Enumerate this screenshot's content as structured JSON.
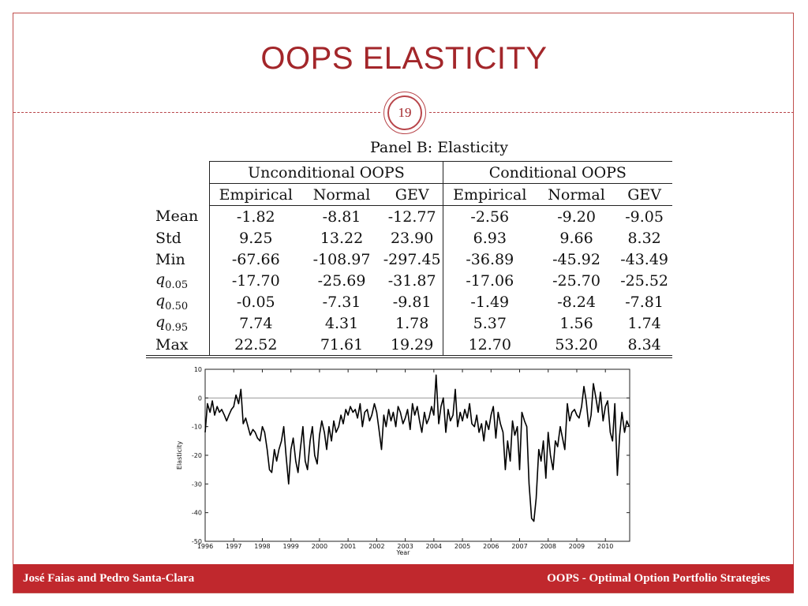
{
  "slide": {
    "title": "OOPS ELASTICITY",
    "page_number": "19"
  },
  "table": {
    "panel_title": "Panel B: Elasticity",
    "groups": [
      "Unconditional OOPS",
      "Conditional OOPS"
    ],
    "subheaders": [
      "Empirical",
      "Normal",
      "GEV",
      "Empirical",
      "Normal",
      "GEV"
    ],
    "rows": [
      {
        "label": "Mean",
        "values": [
          "-1.82",
          "-8.81",
          "-12.77",
          "-2.56",
          "-9.20",
          "-9.05"
        ]
      },
      {
        "label": "Std",
        "values": [
          "9.25",
          "13.22",
          "23.90",
          "6.93",
          "9.66",
          "8.32"
        ]
      },
      {
        "label": "Min",
        "values": [
          "-67.66",
          "-108.97",
          "-297.45",
          "-36.89",
          "-45.92",
          "-43.49"
        ]
      },
      {
        "label": "q",
        "sub": "0.05",
        "values": [
          "-17.70",
          "-25.69",
          "-31.87",
          "-17.06",
          "-25.70",
          "-25.52"
        ]
      },
      {
        "label": "q",
        "sub": "0.50",
        "values": [
          "-0.05",
          "-7.31",
          "-9.81",
          "-1.49",
          "-8.24",
          "-7.81"
        ]
      },
      {
        "label": "q",
        "sub": "0.95",
        "values": [
          "7.74",
          "4.31",
          "1.78",
          "5.37",
          "1.56",
          "1.74"
        ]
      },
      {
        "label": "Max",
        "values": [
          "22.52",
          "71.61",
          "19.29",
          "12.70",
          "53.20",
          "8.34"
        ]
      }
    ]
  },
  "chart_data": {
    "type": "line",
    "title": "",
    "xlabel": "Year",
    "ylabel": "Elasticity",
    "xlim": [
      1996,
      2010.85
    ],
    "ylim": [
      -50,
      10
    ],
    "xticks": [
      "1996",
      "1997",
      "1998",
      "1999",
      "2000",
      "2001",
      "2002",
      "2003",
      "2004",
      "2005",
      "2006",
      "2007",
      "2008",
      "2009",
      "2010"
    ],
    "yticks": [
      "10",
      "0",
      "-10",
      "-20",
      "-30",
      "-40",
      "-50"
    ],
    "grid": false,
    "reference_line": 0,
    "series": [
      {
        "x": [
          1996.0,
          1996.08,
          1996.17,
          1996.25,
          1996.33,
          1996.42,
          1996.5,
          1996.58,
          1996.67,
          1996.75,
          1996.83,
          1996.92,
          1997.0,
          1997.08,
          1997.17,
          1997.25,
          1997.33,
          1997.42,
          1997.5,
          1997.58,
          1997.67,
          1997.75,
          1997.83,
          1997.92,
          1998.0,
          1998.08,
          1998.17,
          1998.25,
          1998.33,
          1998.42,
          1998.5,
          1998.58,
          1998.67,
          1998.75,
          1998.83,
          1998.92,
          1999.0,
          1999.08,
          1999.17,
          1999.25,
          1999.33,
          1999.42,
          1999.5,
          1999.58,
          1999.67,
          1999.75,
          1999.83,
          1999.92,
          2000.0,
          2000.08,
          2000.17,
          2000.25,
          2000.33,
          2000.42,
          2000.5,
          2000.58,
          2000.67,
          2000.75,
          2000.83,
          2000.92,
          2001.0,
          2001.08,
          2001.17,
          2001.25,
          2001.33,
          2001.42,
          2001.5,
          2001.58,
          2001.67,
          2001.75,
          2001.83,
          2001.92,
          2002.0,
          2002.08,
          2002.17,
          2002.25,
          2002.33,
          2002.42,
          2002.5,
          2002.58,
          2002.67,
          2002.75,
          2002.83,
          2002.92,
          2003.0,
          2003.08,
          2003.17,
          2003.25,
          2003.33,
          2003.42,
          2003.5,
          2003.58,
          2003.67,
          2003.75,
          2003.83,
          2003.92,
          2004.0,
          2004.08,
          2004.17,
          2004.25,
          2004.33,
          2004.42,
          2004.5,
          2004.58,
          2004.67,
          2004.75,
          2004.83,
          2004.92,
          2005.0,
          2005.08,
          2005.17,
          2005.25,
          2005.33,
          2005.42,
          2005.5,
          2005.58,
          2005.67,
          2005.75,
          2005.83,
          2005.92,
          2006.0,
          2006.08,
          2006.17,
          2006.25,
          2006.33,
          2006.42,
          2006.5,
          2006.58,
          2006.67,
          2006.75,
          2006.83,
          2006.92,
          2007.0,
          2007.08,
          2007.17,
          2007.25,
          2007.33,
          2007.42,
          2007.5,
          2007.58,
          2007.67,
          2007.75,
          2007.83,
          2007.92,
          2008.0,
          2008.08,
          2008.17,
          2008.25,
          2008.33,
          2008.42,
          2008.5,
          2008.58,
          2008.67,
          2008.75,
          2008.83,
          2008.92,
          2009.0,
          2009.08,
          2009.17,
          2009.25,
          2009.33,
          2009.42,
          2009.5,
          2009.58,
          2009.67,
          2009.75,
          2009.83,
          2009.92,
          2010.0,
          2010.08,
          2010.17,
          2010.25,
          2010.33,
          2010.42,
          2010.5,
          2010.58,
          2010.67,
          2010.75,
          2010.83
        ],
        "y": [
          -12,
          -2,
          -5,
          -1,
          -6,
          -3,
          -5,
          -4,
          -6,
          -8,
          -6,
          -4,
          -3,
          1,
          -2,
          3,
          -9,
          -7,
          -10,
          -13,
          -11,
          -12,
          -14,
          -15,
          -10,
          -12,
          -18,
          -25,
          -26,
          -18,
          -22,
          -18,
          -15,
          -10,
          -20,
          -30,
          -18,
          -14,
          -22,
          -26,
          -18,
          -10,
          -22,
          -25,
          -15,
          -10,
          -20,
          -23,
          -13,
          -8,
          -12,
          -18,
          -10,
          -15,
          -8,
          -12,
          -10,
          -6,
          -9,
          -4,
          -6,
          -3,
          -5,
          -4,
          -7,
          -2,
          -10,
          -5,
          -4,
          -8,
          -6,
          -2,
          -5,
          -11,
          -18,
          -6,
          -10,
          -4,
          -8,
          -5,
          -10,
          -3,
          -5,
          -9,
          -7,
          -4,
          -11,
          -2,
          -6,
          -3,
          -8,
          -12,
          -5,
          -9,
          -7,
          -3,
          -6,
          8,
          -9,
          -3,
          0,
          -12,
          -4,
          -8,
          -6,
          3,
          -10,
          -5,
          -8,
          -4,
          -7,
          -2,
          -9,
          -10,
          -6,
          -12,
          -9,
          -15,
          -8,
          -11,
          -6,
          -3,
          -14,
          -5,
          -9,
          -12,
          -25,
          -15,
          -22,
          -8,
          -13,
          -10,
          -25,
          -5,
          -8,
          -10,
          -30,
          -42,
          -43,
          -35,
          -18,
          -22,
          -15,
          -28,
          -12,
          -20,
          -25,
          -15,
          -17,
          -10,
          -14,
          -18,
          -2,
          -8,
          -5,
          -4,
          -6,
          -7,
          -3,
          4,
          -1,
          -10,
          -6,
          5,
          0,
          -5,
          2,
          -8,
          -3,
          -1,
          -12,
          -15,
          -2,
          -27,
          -13,
          -5,
          -12,
          -8,
          -10
        ]
      }
    ]
  },
  "footer": {
    "authors": "José Faias and Pedro Santa-Clara",
    "presentation_title": "OOPS - Optimal Option Portfolio Strategies"
  }
}
